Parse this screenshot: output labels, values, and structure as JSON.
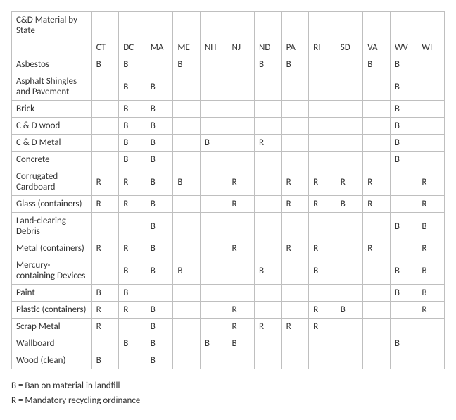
{
  "table": {
    "corner_label": "C&D Material by State",
    "states": [
      "CT",
      "DC",
      "MA",
      "ME",
      "NH",
      "NJ",
      "ND",
      "PA",
      "RI",
      "SD",
      "VA",
      "WV",
      "WI"
    ],
    "rows": [
      {
        "label": "Asbestos",
        "cells": [
          "B",
          "B",
          "",
          "B",
          "",
          "",
          "B",
          "B",
          "",
          "",
          "B",
          "B",
          ""
        ]
      },
      {
        "label": "Asphalt Shingles and Pavement",
        "cells": [
          "",
          "B",
          "B",
          "",
          "",
          "",
          "",
          "",
          "",
          "",
          "",
          "B",
          ""
        ]
      },
      {
        "label": "Brick",
        "cells": [
          "",
          "B",
          "B",
          "",
          "",
          "",
          "",
          "",
          "",
          "",
          "",
          "B",
          ""
        ]
      },
      {
        "label": "C & D wood",
        "cells": [
          "",
          "B",
          "B",
          "",
          "",
          "",
          "",
          "",
          "",
          "",
          "",
          "B",
          ""
        ]
      },
      {
        "label": "C & D Metal",
        "cells": [
          "",
          "B",
          "B",
          "",
          "B",
          "",
          "R",
          "",
          "",
          "",
          "",
          "B",
          ""
        ]
      },
      {
        "label": "Concrete",
        "cells": [
          "",
          "B",
          "B",
          "",
          "",
          "",
          "",
          "",
          "",
          "",
          "",
          "B",
          ""
        ]
      },
      {
        "label": "Corrugated Cardboard",
        "cells": [
          "R",
          "R",
          "B",
          "B",
          "",
          "R",
          "",
          "R",
          "R",
          "R",
          "R",
          "",
          "R"
        ]
      },
      {
        "label": "Glass (containers)",
        "cells": [
          "R",
          "R",
          "B",
          "",
          "",
          "R",
          "",
          "R",
          "R",
          "B",
          "R",
          "",
          "R"
        ]
      },
      {
        "label": "Land-clearing Debris",
        "cells": [
          "",
          "",
          "B",
          "",
          "",
          "",
          "",
          "",
          "",
          "",
          "",
          "B",
          "B"
        ]
      },
      {
        "label": "Metal (containers)",
        "cells": [
          "R",
          "R",
          "B",
          "",
          "",
          "R",
          "",
          "R",
          "R",
          "",
          "R",
          "",
          "R"
        ]
      },
      {
        "label": "Mercury-containing Devices",
        "cells": [
          "",
          "B",
          "B",
          "B",
          "",
          "",
          "B",
          "",
          "B",
          "",
          "",
          "B",
          "B"
        ]
      },
      {
        "label": "Paint",
        "cells": [
          "B",
          "B",
          "",
          "",
          "",
          "",
          "",
          "",
          "",
          "",
          "",
          "B",
          "B"
        ]
      },
      {
        "label": "Plastic (containers)",
        "cells": [
          "R",
          "R",
          "B",
          "",
          "",
          "R",
          "",
          "",
          "R",
          "B",
          "",
          "",
          "R"
        ]
      },
      {
        "label": "Scrap Metal",
        "cells": [
          "R",
          "",
          "B",
          "",
          "",
          "R",
          "R",
          "R",
          "R",
          "",
          "",
          "",
          ""
        ]
      },
      {
        "label": "Wallboard",
        "cells": [
          "",
          "B",
          "B",
          "",
          "B",
          "B",
          "",
          "",
          "",
          "",
          "",
          "B",
          ""
        ]
      },
      {
        "label": "Wood (clean)",
        "cells": [
          "B",
          "",
          "B",
          "",
          "",
          "",
          "",
          "",
          "",
          "",
          "",
          "",
          ""
        ]
      }
    ]
  },
  "legend": {
    "b": "B = Ban on material in landfill",
    "r": "R = Mandatory recycling ordinance"
  }
}
